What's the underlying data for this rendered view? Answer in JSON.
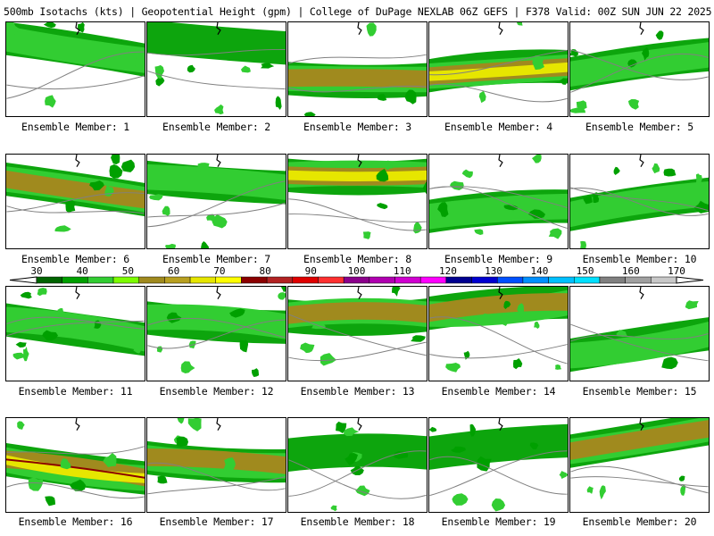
{
  "header": {
    "title": "500mb Isotachs (kts) | Geopotential Height (gpm) | College of DuPage NEXLAB   06Z GEFS | F378 Valid: 00Z SUN JUN 22 2025"
  },
  "members": [
    {
      "label": "Ensemble Member: 1",
      "intensity": 1
    },
    {
      "label": "Ensemble Member: 2",
      "intensity": 0
    },
    {
      "label": "Ensemble Member: 3",
      "intensity": 2
    },
    {
      "label": "Ensemble Member: 4",
      "intensity": 3
    },
    {
      "label": "Ensemble Member: 5",
      "intensity": 1
    },
    {
      "label": "Ensemble Member: 6",
      "intensity": 2
    },
    {
      "label": "Ensemble Member: 7",
      "intensity": 1
    },
    {
      "label": "Ensemble Member: 8",
      "intensity": 3
    },
    {
      "label": "Ensemble Member: 9",
      "intensity": 1
    },
    {
      "label": "Ensemble Member: 10",
      "intensity": 1
    },
    {
      "label": "Ensemble Member: 11",
      "intensity": 1
    },
    {
      "label": "Ensemble Member: 12",
      "intensity": 1
    },
    {
      "label": "Ensemble Member: 13",
      "intensity": 2
    },
    {
      "label": "Ensemble Member: 14",
      "intensity": 2
    },
    {
      "label": "Ensemble Member: 15",
      "intensity": 1
    },
    {
      "label": "Ensemble Member: 16",
      "intensity": 4
    },
    {
      "label": "Ensemble Member: 17",
      "intensity": 2
    },
    {
      "label": "Ensemble Member: 18",
      "intensity": 0
    },
    {
      "label": "Ensemble Member: 19",
      "intensity": 0
    },
    {
      "label": "Ensemble Member: 20",
      "intensity": 2
    }
  ],
  "colorbar": {
    "ticks": [
      "30",
      "40",
      "50",
      "60",
      "70",
      "80",
      "90",
      "100",
      "110",
      "120",
      "130",
      "140",
      "150",
      "160",
      "170"
    ],
    "colors": [
      "#006400",
      "#00a000",
      "#32cd32",
      "#7cfc00",
      "#a08a1e",
      "#b8a020",
      "#e6e600",
      "#ffff00",
      "#8b0000",
      "#b22222",
      "#e00000",
      "#ff3030",
      "#8b008b",
      "#b000b0",
      "#d000d0",
      "#ff00ff",
      "#000090",
      "#0000d0",
      "#0050ff",
      "#0090ff",
      "#00c0ff",
      "#00e0ff",
      "#808080",
      "#a0a0a0",
      "#c8c8c8"
    ]
  }
}
